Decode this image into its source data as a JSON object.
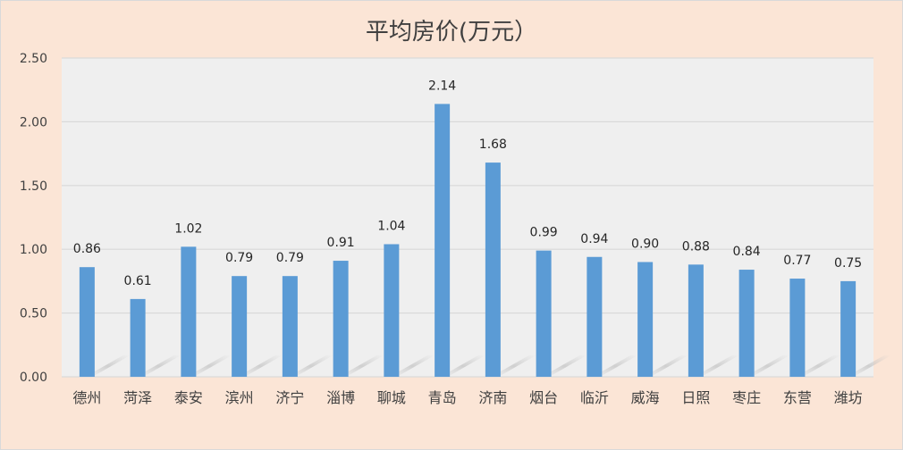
{
  "chart_data": {
    "type": "bar",
    "title": "平均房价(万元）",
    "xlabel": "",
    "ylabel": "",
    "categories": [
      "德州",
      "菏泽",
      "泰安",
      "滨州",
      "济宁",
      "淄博",
      "聊城",
      "青岛",
      "济南",
      "烟台",
      "临沂",
      "威海",
      "日照",
      "枣庄",
      "东营",
      "潍坊"
    ],
    "values": [
      0.86,
      0.61,
      1.02,
      0.79,
      0.79,
      0.91,
      1.04,
      2.14,
      1.68,
      0.99,
      0.94,
      0.9,
      0.88,
      0.84,
      0.77,
      0.75
    ],
    "data_labels": [
      "0.86",
      "0.61",
      "1.02",
      "0.79",
      "0.79",
      "0.91",
      "1.04",
      "2.14",
      "1.68",
      "0.99",
      "0.94",
      "0.90",
      "0.88",
      "0.84",
      "0.77",
      "0.75"
    ],
    "y_ticks": [
      "0.00",
      "0.50",
      "1.00",
      "1.50",
      "2.00",
      "2.50"
    ],
    "ylim": [
      0,
      2.5
    ],
    "grid": true,
    "legend": "none",
    "colors": {
      "bar": "#5b9bd5",
      "plot_background": "#efefef",
      "chart_background": "#fbe5d6",
      "gridline": "#d9d9d9"
    }
  }
}
